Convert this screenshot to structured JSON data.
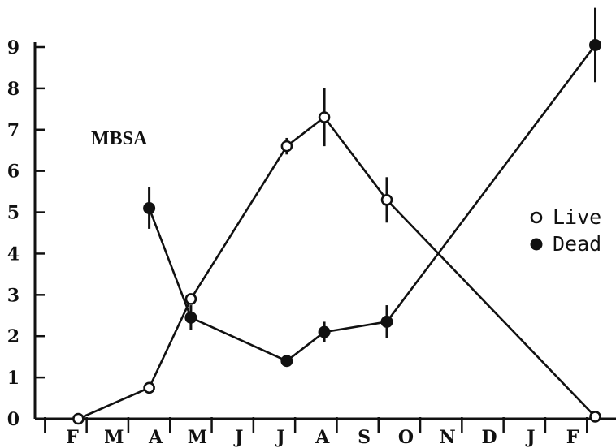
{
  "chart_data": {
    "type": "line",
    "title": "",
    "annotation": "MBSA",
    "xlabel": "",
    "ylabel": "",
    "categories": [
      "F",
      "M",
      "A",
      "M",
      "J",
      "J",
      "A",
      "S",
      "O",
      "N",
      "D",
      "J",
      "F"
    ],
    "ylim": [
      0,
      9
    ],
    "yticks": [
      "0",
      "1",
      "2",
      "3",
      "4",
      "5",
      "6",
      "7",
      "8",
      "9"
    ],
    "grid": false,
    "legend_position": "right",
    "colors": {
      "ink": "#111111",
      "background": "#ffffff"
    },
    "series": [
      {
        "name": "Live",
        "marker": "open-circle",
        "points": [
          {
            "x": 0.3,
            "y": 0.0,
            "err": 0.0
          },
          {
            "x": 2.0,
            "y": 0.75,
            "err": 0.0
          },
          {
            "x": 3.0,
            "y": 2.9,
            "err": 0.0
          },
          {
            "x": 5.3,
            "y": 6.6,
            "err": 0.2
          },
          {
            "x": 6.2,
            "y": 7.3,
            "err": 0.7
          },
          {
            "x": 7.7,
            "y": 5.3,
            "err": 0.55
          },
          {
            "x": 12.7,
            "y": 0.05,
            "err": 0.0
          }
        ]
      },
      {
        "name": "Dead",
        "marker": "filled-circle",
        "points": [
          {
            "x": 2.0,
            "y": 5.1,
            "err": 0.5
          },
          {
            "x": 3.0,
            "y": 2.45,
            "err": 0.3
          },
          {
            "x": 5.3,
            "y": 1.4,
            "err": 0.0
          },
          {
            "x": 6.2,
            "y": 2.1,
            "err": 0.25
          },
          {
            "x": 7.7,
            "y": 2.35,
            "err": 0.4
          },
          {
            "x": 12.7,
            "y": 9.05,
            "err": 0.9
          }
        ]
      }
    ]
  }
}
